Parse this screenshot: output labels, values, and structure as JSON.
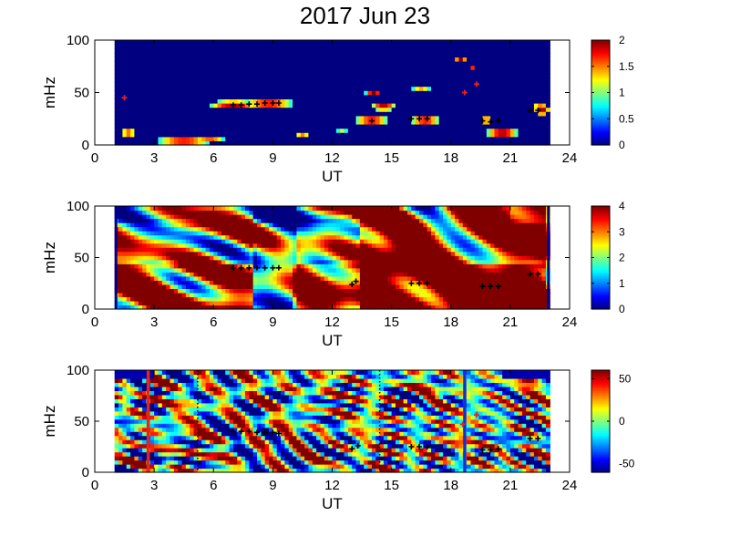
{
  "figure": {
    "title": "2017 Jun 23"
  },
  "chart_data": [
    {
      "type": "heatmap",
      "panel": "top",
      "xlabel": "UT",
      "ylabel": "mHz",
      "xlim": [
        0,
        24
      ],
      "ylim": [
        0,
        100
      ],
      "xticks": [
        "0",
        "3",
        "6",
        "9",
        "12",
        "15",
        "18",
        "21",
        "24"
      ],
      "yticks": [
        "0",
        "50",
        "100"
      ],
      "data_range_x": [
        1,
        23
      ],
      "colorbar": {
        "range": [
          0,
          2
        ],
        "ticks": [
          "0",
          "0.5",
          "1",
          "1.5",
          "2"
        ],
        "colormap": "jet"
      },
      "background_value": 0,
      "blobs": [
        {
          "x": 7.0,
          "y": 39,
          "value": 2.0,
          "w": 1.2,
          "h": 4
        },
        {
          "x": 8.8,
          "y": 40,
          "value": 2.0,
          "w": 1.3,
          "h": 4
        },
        {
          "x": 4.5,
          "y": 4,
          "value": 2.0,
          "w": 1.4,
          "h": 4
        },
        {
          "x": 5.8,
          "y": 5,
          "value": 1.7,
          "w": 0.8,
          "h": 3
        },
        {
          "x": 1.7,
          "y": 12,
          "value": 1.8,
          "w": 0.4,
          "h": 4
        },
        {
          "x": 10.5,
          "y": 11,
          "value": 1.6,
          "w": 0.4,
          "h": 3
        },
        {
          "x": 12.5,
          "y": 15,
          "value": 1.2,
          "w": 0.3,
          "h": 3
        },
        {
          "x": 14.1,
          "y": 50,
          "value": 2.0,
          "w": 0.4,
          "h": 4
        },
        {
          "x": 14.6,
          "y": 37,
          "value": 2.0,
          "w": 0.6,
          "h": 4
        },
        {
          "x": 14.0,
          "y": 24,
          "value": 2.0,
          "w": 0.9,
          "h": 4
        },
        {
          "x": 16.7,
          "y": 24,
          "value": 2.0,
          "w": 0.8,
          "h": 4
        },
        {
          "x": 16.5,
          "y": 53,
          "value": 1.5,
          "w": 0.5,
          "h": 3
        },
        {
          "x": 18.5,
          "y": 82,
          "value": 2.0,
          "w": 0.3,
          "h": 4
        },
        {
          "x": 19.1,
          "y": 75,
          "value": 1.8,
          "w": 0.2,
          "h": 3
        },
        {
          "x": 19.8,
          "y": 24,
          "value": 2.0,
          "w": 0.4,
          "h": 3
        },
        {
          "x": 20.6,
          "y": 12,
          "value": 2.0,
          "w": 0.8,
          "h": 6
        },
        {
          "x": 22.6,
          "y": 34,
          "value": 2.0,
          "w": 0.4,
          "h": 6
        },
        {
          "x": 22.5,
          "y": 39,
          "value": 1.6,
          "w": 0.4,
          "h": 3
        }
      ],
      "markers": [
        [
          7.0,
          38
        ],
        [
          7.4,
          38
        ],
        [
          7.8,
          39
        ],
        [
          8.2,
          39
        ],
        [
          8.6,
          40
        ],
        [
          9.0,
          40
        ],
        [
          9.3,
          40
        ],
        [
          14.0,
          23
        ],
        [
          16.0,
          25
        ],
        [
          16.4,
          25
        ],
        [
          16.8,
          25
        ],
        [
          19.6,
          23
        ],
        [
          20.0,
          22
        ],
        [
          20.4,
          23
        ],
        [
          22.0,
          33
        ],
        [
          22.4,
          33
        ]
      ],
      "red_markers": [
        [
          1.5,
          45
        ],
        [
          18.7,
          50
        ],
        [
          19.3,
          58
        ]
      ]
    },
    {
      "type": "heatmap",
      "panel": "middle",
      "xlabel": "UT",
      "ylabel": "mHz",
      "xlim": [
        0,
        24
      ],
      "ylim": [
        0,
        100
      ],
      "xticks": [
        "0",
        "3",
        "6",
        "9",
        "12",
        "15",
        "18",
        "21",
        "24"
      ],
      "yticks": [
        "0",
        "50",
        "100"
      ],
      "data_range_x": [
        1,
        23
      ],
      "colorbar": {
        "range": [
          0,
          4
        ],
        "ticks": [
          "0",
          "1",
          "2",
          "3",
          "4"
        ],
        "colormap": "jet"
      },
      "markers": [
        [
          7.0,
          40
        ],
        [
          7.4,
          40
        ],
        [
          7.8,
          40
        ],
        [
          8.2,
          40
        ],
        [
          8.6,
          40
        ],
        [
          9.0,
          40
        ],
        [
          9.3,
          40
        ],
        [
          13.0,
          24
        ],
        [
          13.2,
          27
        ],
        [
          16.0,
          25
        ],
        [
          16.4,
          25
        ],
        [
          16.8,
          25
        ],
        [
          19.6,
          22
        ],
        [
          20.0,
          22
        ],
        [
          20.4,
          22
        ],
        [
          22.0,
          34
        ],
        [
          22.4,
          34
        ]
      ]
    },
    {
      "type": "heatmap",
      "panel": "bottom",
      "xlabel": "UT",
      "ylabel": "mHz",
      "xlim": [
        0,
        24
      ],
      "ylim": [
        0,
        100
      ],
      "xticks": [
        "0",
        "3",
        "6",
        "9",
        "12",
        "15",
        "18",
        "21",
        "24"
      ],
      "yticks": [
        "0",
        "50",
        "100"
      ],
      "data_range_x": [
        1,
        23
      ],
      "colorbar": {
        "range": [
          -60,
          60
        ],
        "ticks": [
          "-50",
          "0",
          "50"
        ],
        "colormap": "jet"
      },
      "vertical_lines": [
        {
          "x": 2.7,
          "color": "#e4251c",
          "style": "solid"
        },
        {
          "x": 18.7,
          "color": "#1230d8",
          "style": "solid"
        },
        {
          "x": 5.2,
          "color": "#000000",
          "style": "dotted"
        },
        {
          "x": 14.4,
          "color": "#000000",
          "style": "dotted"
        }
      ],
      "markers": [
        [
          7.0,
          40
        ],
        [
          7.4,
          40
        ],
        [
          7.8,
          40
        ],
        [
          8.2,
          39
        ],
        [
          8.6,
          39
        ],
        [
          9.0,
          39
        ],
        [
          9.3,
          38
        ],
        [
          13.0,
          23
        ],
        [
          13.3,
          26
        ],
        [
          16.0,
          25
        ],
        [
          16.4,
          25
        ],
        [
          16.8,
          25
        ],
        [
          19.6,
          22
        ],
        [
          20.0,
          22
        ],
        [
          20.4,
          23
        ],
        [
          22.0,
          33
        ],
        [
          22.4,
          33
        ]
      ],
      "red_markers": [
        [
          18.6,
          47
        ],
        [
          19.3,
          56
        ]
      ]
    }
  ]
}
